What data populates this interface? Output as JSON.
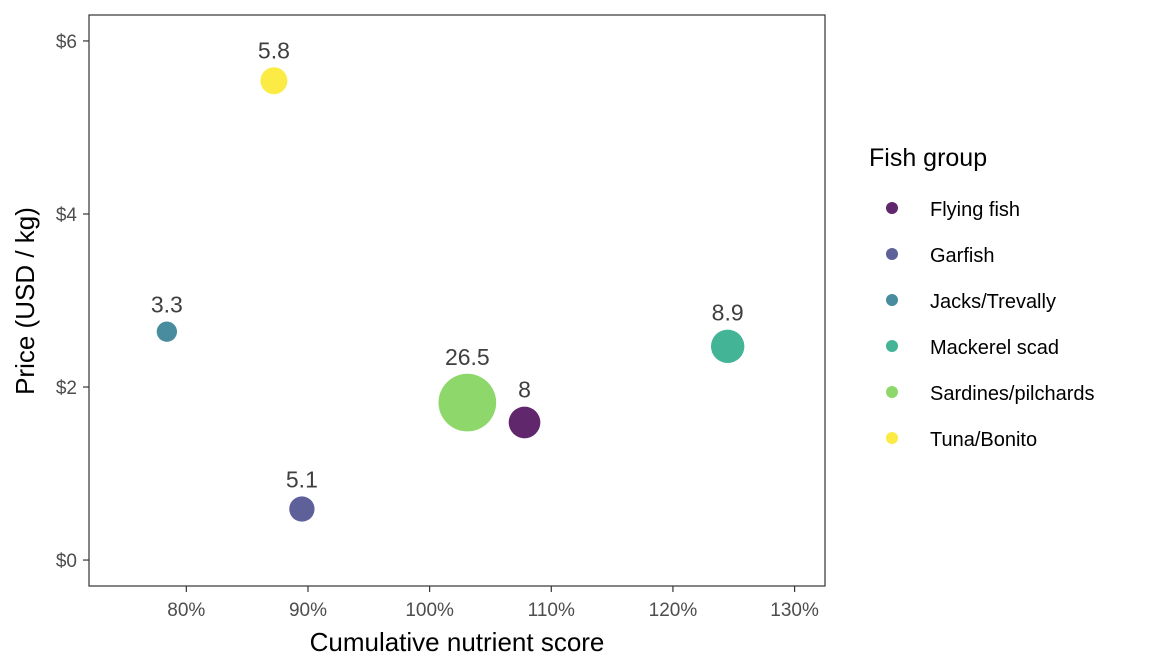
{
  "chart_data": {
    "type": "scatter",
    "xlabel": "Cumulative nutrient score",
    "ylabel": "Price (USD / kg)",
    "xlim": [
      0.72,
      1.325
    ],
    "ylim": [
      -0.3,
      6.3
    ],
    "x_ticks": [
      0.8,
      0.9,
      1.0,
      1.1,
      1.2,
      1.3
    ],
    "x_tick_labels": [
      "80%",
      "90%",
      "100%",
      "110%",
      "120%",
      "130%"
    ],
    "y_ticks": [
      0,
      2,
      4,
      6
    ],
    "y_tick_labels": [
      "$0",
      "$2",
      "$4",
      "$6"
    ],
    "grid": false,
    "legend": {
      "title": "Fish group",
      "placement": "right",
      "entries": [
        "Flying fish",
        "Garfish",
        "Jacks/Trevally",
        "Mackerel scad",
        "Sardines/pilchards",
        "Tuna/Bonito"
      ]
    },
    "series": [
      {
        "name": "Flying fish",
        "x": 1.078,
        "y": 1.59,
        "size": 8,
        "label": "8",
        "color": "#440154"
      },
      {
        "name": "Garfish",
        "x": 0.895,
        "y": 0.59,
        "size": 5.1,
        "label": "5.1",
        "color": "#414487"
      },
      {
        "name": "Jacks/Trevally",
        "x": 0.784,
        "y": 2.64,
        "size": 3.3,
        "label": "3.3",
        "color": "#2a788e"
      },
      {
        "name": "Mackerel scad",
        "x": 1.245,
        "y": 2.47,
        "size": 8.9,
        "label": "8.9",
        "color": "#22a884"
      },
      {
        "name": "Sardines/pilchards",
        "x": 1.031,
        "y": 1.82,
        "size": 26.5,
        "label": "26.5",
        "color": "#7ad151"
      },
      {
        "name": "Tuna/Bonito",
        "x": 0.872,
        "y": 5.54,
        "size": 5.8,
        "label": "5.8",
        "color": "#fde725"
      }
    ]
  }
}
